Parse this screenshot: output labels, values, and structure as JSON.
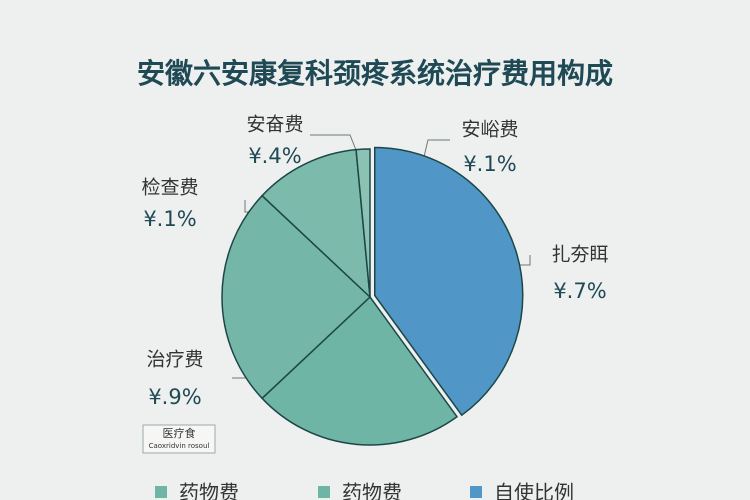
{
  "chart_data": {
    "type": "pie",
    "title": "安徽六安康复科颈疼系统治疗费用构成",
    "values": [
      40,
      23,
      24,
      11.5,
      1.5
    ],
    "colors": [
      "#5096c6",
      "#6fb5a5",
      "#74b6a7",
      "#7cbbab",
      "#8cc2b4"
    ],
    "annotations": [
      {
        "text": "扎夯眲",
        "value_text": "¥.7%"
      },
      {
        "text": "治疗费",
        "value_text": "¥.9%"
      },
      {
        "text": "检查费",
        "value_text": "¥.1%"
      },
      {
        "text": "安奋费",
        "value_text": "¥.4%"
      },
      {
        "text": "安峪费",
        "value_text": "¥.1%"
      }
    ],
    "legend": [
      {
        "name": "药物费",
        "color": "#6fb5a5"
      },
      {
        "name": "药物费",
        "color": "#6fb5a5"
      },
      {
        "name": "自使比例",
        "color": "#5096c6"
      }
    ],
    "watermark": [
      "医疗食",
      "Caoxridvin rosoul"
    ]
  }
}
